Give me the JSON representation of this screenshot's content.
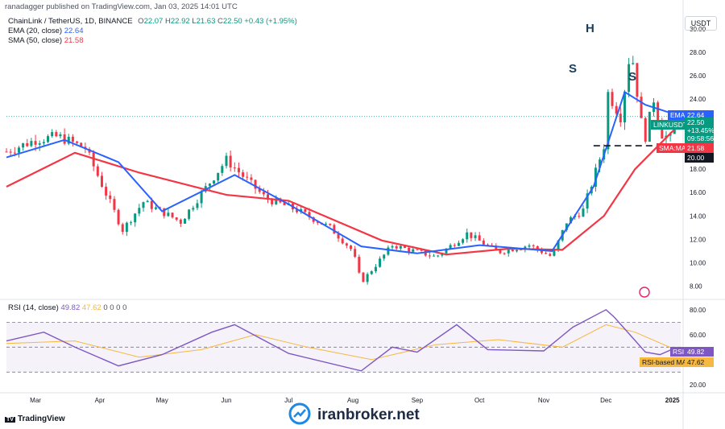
{
  "header": {
    "publisher": "ranadagger published on TradingView.com, Jan 03, 2025 14:01 UTC",
    "symbol_line": "ChainLink / TetherUS, 1D, BINANCE",
    "ohlc": {
      "o_label": "O",
      "o": "22.07",
      "h_label": "H",
      "h": "22.92",
      "l_label": "L",
      "l": "21.63",
      "c_label": "C",
      "c": "22.50",
      "change": "+0.43 (+1.95%)"
    },
    "ema_label": "EMA (20, close)",
    "ema_value": "22.64",
    "sma_label": "SMA (50, close)",
    "sma_value": "21.58",
    "rsi_label": "RSI (14, close)",
    "rsi_value": "49.82",
    "rsi_ma_value": "47.62",
    "rsi_zeros": "0 0 0 0"
  },
  "currency": "USDT",
  "price_tags": {
    "ema_tag": "EMA",
    "ema_value": "22.64",
    "symbol_tag": "LINKUSDT",
    "close_value": "22.50",
    "change_pct": "+13.45%",
    "countdown": "09:58:56",
    "sma_tag": "SMA:MA",
    "sma_value": "21.58",
    "level_value": "20.00"
  },
  "rsi_tags": {
    "rsi_tag": "RSI",
    "rsi_value": "49.82",
    "ma_tag": "RSI-based MA",
    "ma_value": "47.62"
  },
  "annotations": {
    "left_shoulder": "S",
    "head": "H",
    "right_shoulder": "S"
  },
  "footer": {
    "brand": "TradingView",
    "watermark": "iranbroker.net"
  },
  "colors": {
    "up": "#089981",
    "down": "#f23645",
    "ema": "#2962ff",
    "sma": "#f23645",
    "rsi": "#7e57c2",
    "rsi_ma": "#f5b841",
    "neckline": "#131722",
    "bg": "#ffffff"
  },
  "chart_data": {
    "type": "line",
    "title": "ChainLink / TetherUS, 1D, BINANCE",
    "x_ticks": [
      "Mar",
      "Apr",
      "May",
      "Jun",
      "Jul",
      "Aug",
      "Sep",
      "Oct",
      "Nov",
      "Dec",
      "2025"
    ],
    "price_axis": {
      "ticks": [
        8.0,
        10.0,
        12.0,
        14.0,
        16.0,
        18.0,
        20.0,
        22.0,
        24.0,
        26.0,
        28.0,
        30.0
      ],
      "ylim": [
        7.0,
        31.5
      ]
    },
    "rsi_axis": {
      "ticks": [
        20.0,
        40.0,
        60.0,
        80.0
      ],
      "ylim": [
        16,
        87
      ],
      "bands": [
        30,
        50,
        70
      ]
    },
    "neckline": 20.0,
    "series": [
      {
        "name": "ChainLink / TetherUS",
        "type": "candles",
        "x": [
          "Feb 15",
          "Mar 01",
          "Mar 12",
          "Mar 25",
          "Apr 12",
          "Apr 22",
          "May 10",
          "Jun 01",
          "Jun 20",
          "Jul 05",
          "Jul 21",
          "Aug 01",
          "Aug 05",
          "Aug 20",
          "Sep 10",
          "Sep 25",
          "Oct 10",
          "Oct 25",
          "Nov 05",
          "Nov 12",
          "Nov 20",
          "Nov 30",
          "Dec 02",
          "Dec 08",
          "Dec 13",
          "Dec 18",
          "Dec 20",
          "Dec 24",
          "Dec 28",
          "Jan 01",
          "Jan 03"
        ],
        "values": [
          19.5,
          20.5,
          20.8,
          19.8,
          12.8,
          15.2,
          13.5,
          18.8,
          15.5,
          14.5,
          13.0,
          11.0,
          8.3,
          11.5,
          10.5,
          12.5,
          10.9,
          11.5,
          10.5,
          13.5,
          14.5,
          20.0,
          24.5,
          22.5,
          28.5,
          22.0,
          20.8,
          24.0,
          21.0,
          20.5,
          22.5
        ]
      },
      {
        "name": "EMA (20, close)",
        "x": [
          "Feb 15",
          "Mar 15",
          "Apr 10",
          "May 01",
          "Jun 05",
          "Jul 01",
          "Aug 05",
          "Sep 01",
          "Oct 01",
          "Nov 05",
          "Nov 25",
          "Dec 10",
          "Dec 20",
          "Jan 03"
        ],
        "values": [
          19.0,
          20.5,
          18.6,
          14.4,
          17.5,
          15.0,
          11.4,
          10.8,
          11.5,
          11.0,
          16.5,
          24.6,
          23.5,
          22.64
        ]
      },
      {
        "name": "SMA (50, close)",
        "x": [
          "Feb 15",
          "Mar 20",
          "Apr 20",
          "Jun 01",
          "Jul 01",
          "Aug 15",
          "Sep 15",
          "Oct 15",
          "Nov 10",
          "Nov 30",
          "Dec 15",
          "Jan 03"
        ],
        "values": [
          16.5,
          19.4,
          17.7,
          15.8,
          15.3,
          11.9,
          10.7,
          11.2,
          11.1,
          14.0,
          18.0,
          21.58
        ]
      },
      {
        "name": "RSI (14, close)",
        "x": [
          "Feb 15",
          "Mar 05",
          "Mar 20",
          "Apr 10",
          "May 01",
          "May 25",
          "Jun 05",
          "Jul 01",
          "Aug 05",
          "Aug 20",
          "Sep 01",
          "Sep 20",
          "Oct 05",
          "Nov 01",
          "Nov 15",
          "Dec 01",
          "Dec 05",
          "Dec 20",
          "Dec 27",
          "Jan 03"
        ],
        "values": [
          55,
          62,
          50,
          35,
          44,
          62,
          68,
          45,
          31,
          50,
          46,
          68,
          48,
          47,
          66,
          80,
          74,
          46,
          44,
          49.82
        ]
      },
      {
        "name": "RSI-based MA",
        "x": [
          "Feb 15",
          "Mar 20",
          "Apr 20",
          "May 20",
          "Jun 15",
          "Jul 10",
          "Aug 10",
          "Sep 10",
          "Oct 10",
          "Nov 10",
          "Dec 01",
          "Dec 15",
          "Jan 03"
        ],
        "values": [
          53,
          55,
          42,
          48,
          60,
          50,
          40,
          52,
          56,
          50,
          68,
          62,
          47.62
        ]
      }
    ]
  }
}
